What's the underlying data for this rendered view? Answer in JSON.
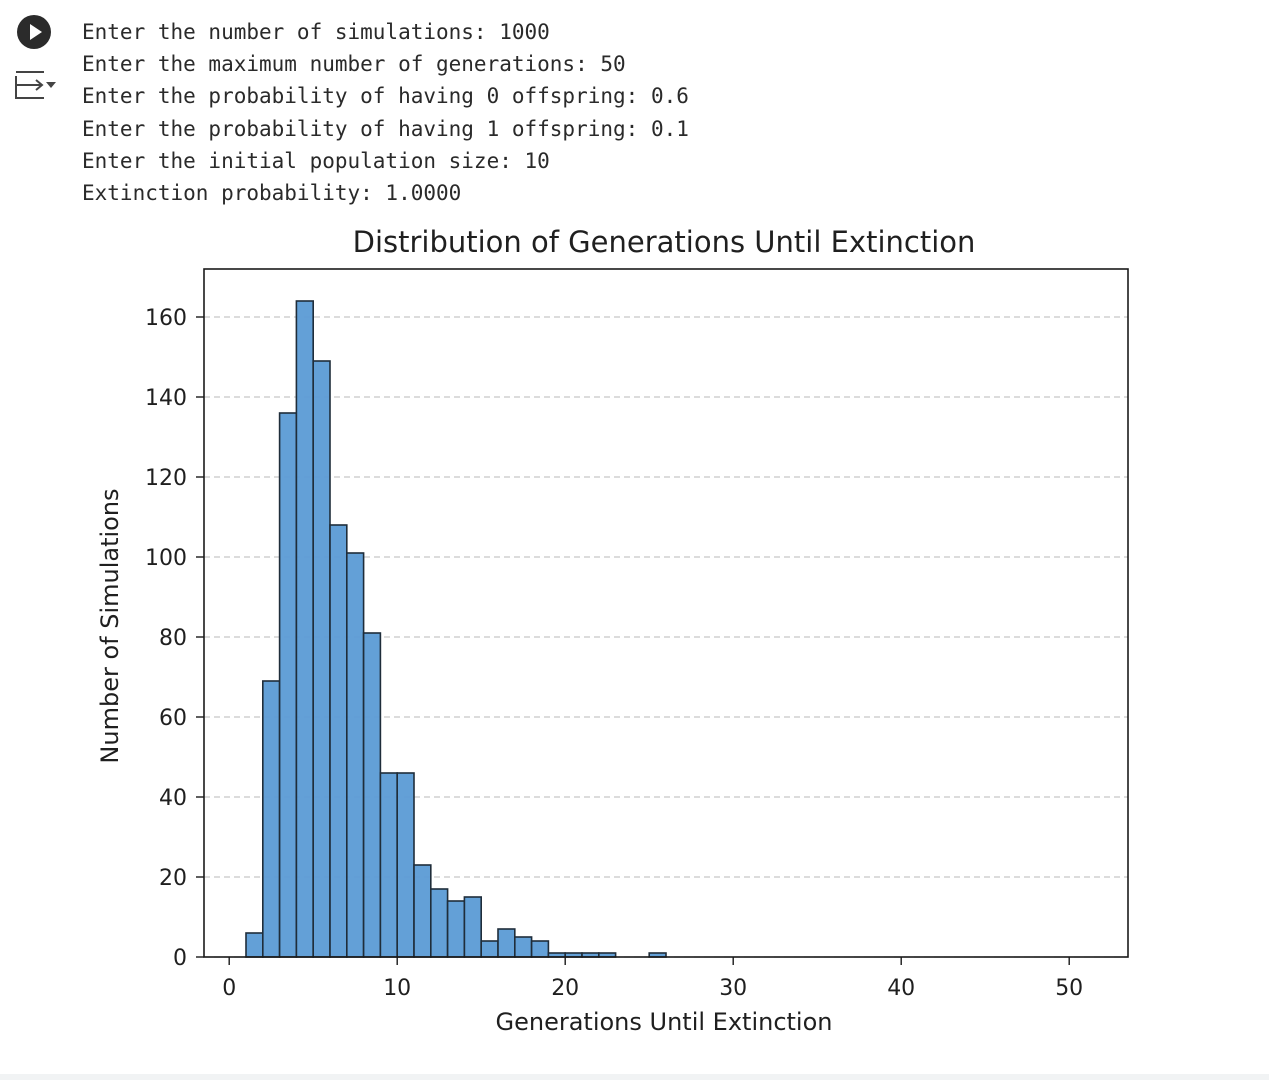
{
  "output_lines": [
    "Enter the number of simulations: 1000",
    "Enter the maximum number of generations: 50",
    "Enter the probability of having 0 offspring: 0.6",
    "Enter the probability of having 1 offspring: 0.1",
    "Enter the initial population size: 10",
    "Extinction probability: 1.0000"
  ],
  "icons": {
    "run": "play-circle-icon",
    "output_toggle": "output-collapse-icon"
  },
  "chart_data": {
    "type": "bar",
    "title": "Distribution of Generations Until Extinction",
    "xlabel": "Generations Until Extinction",
    "ylabel": "Number of Simulations",
    "xlim": [
      -1.5,
      53.5
    ],
    "ylim": [
      0,
      172
    ],
    "xticks": [
      0,
      10,
      20,
      30,
      40,
      50
    ],
    "yticks": [
      0,
      20,
      40,
      60,
      80,
      100,
      120,
      140,
      160
    ],
    "grid": "y-dashed",
    "bin_edges": [
      1,
      2,
      3,
      4,
      5,
      6,
      7,
      8,
      9,
      10,
      11,
      12,
      13,
      14,
      15,
      16,
      17,
      18,
      19,
      20,
      21,
      22,
      23,
      24,
      25,
      26,
      27,
      28,
      29,
      30,
      31,
      32,
      33,
      34,
      35,
      36,
      37,
      38,
      39,
      40,
      41,
      42,
      43,
      44,
      45,
      46,
      47,
      48,
      49,
      50,
      51
    ],
    "values": [
      6,
      69,
      136,
      164,
      149,
      108,
      101,
      81,
      46,
      46,
      23,
      17,
      14,
      15,
      4,
      7,
      5,
      4,
      1,
      1,
      1,
      1,
      0,
      0,
      1,
      0,
      0,
      0,
      0,
      0,
      0,
      0,
      0,
      0,
      0,
      0,
      0,
      0,
      0,
      0,
      0,
      0,
      0,
      0,
      0,
      0,
      0,
      0,
      0,
      0
    ],
    "bar_color": "#5b9bd5",
    "edge_color": "#1f2d3a",
    "bar_alpha": 0.95
  }
}
